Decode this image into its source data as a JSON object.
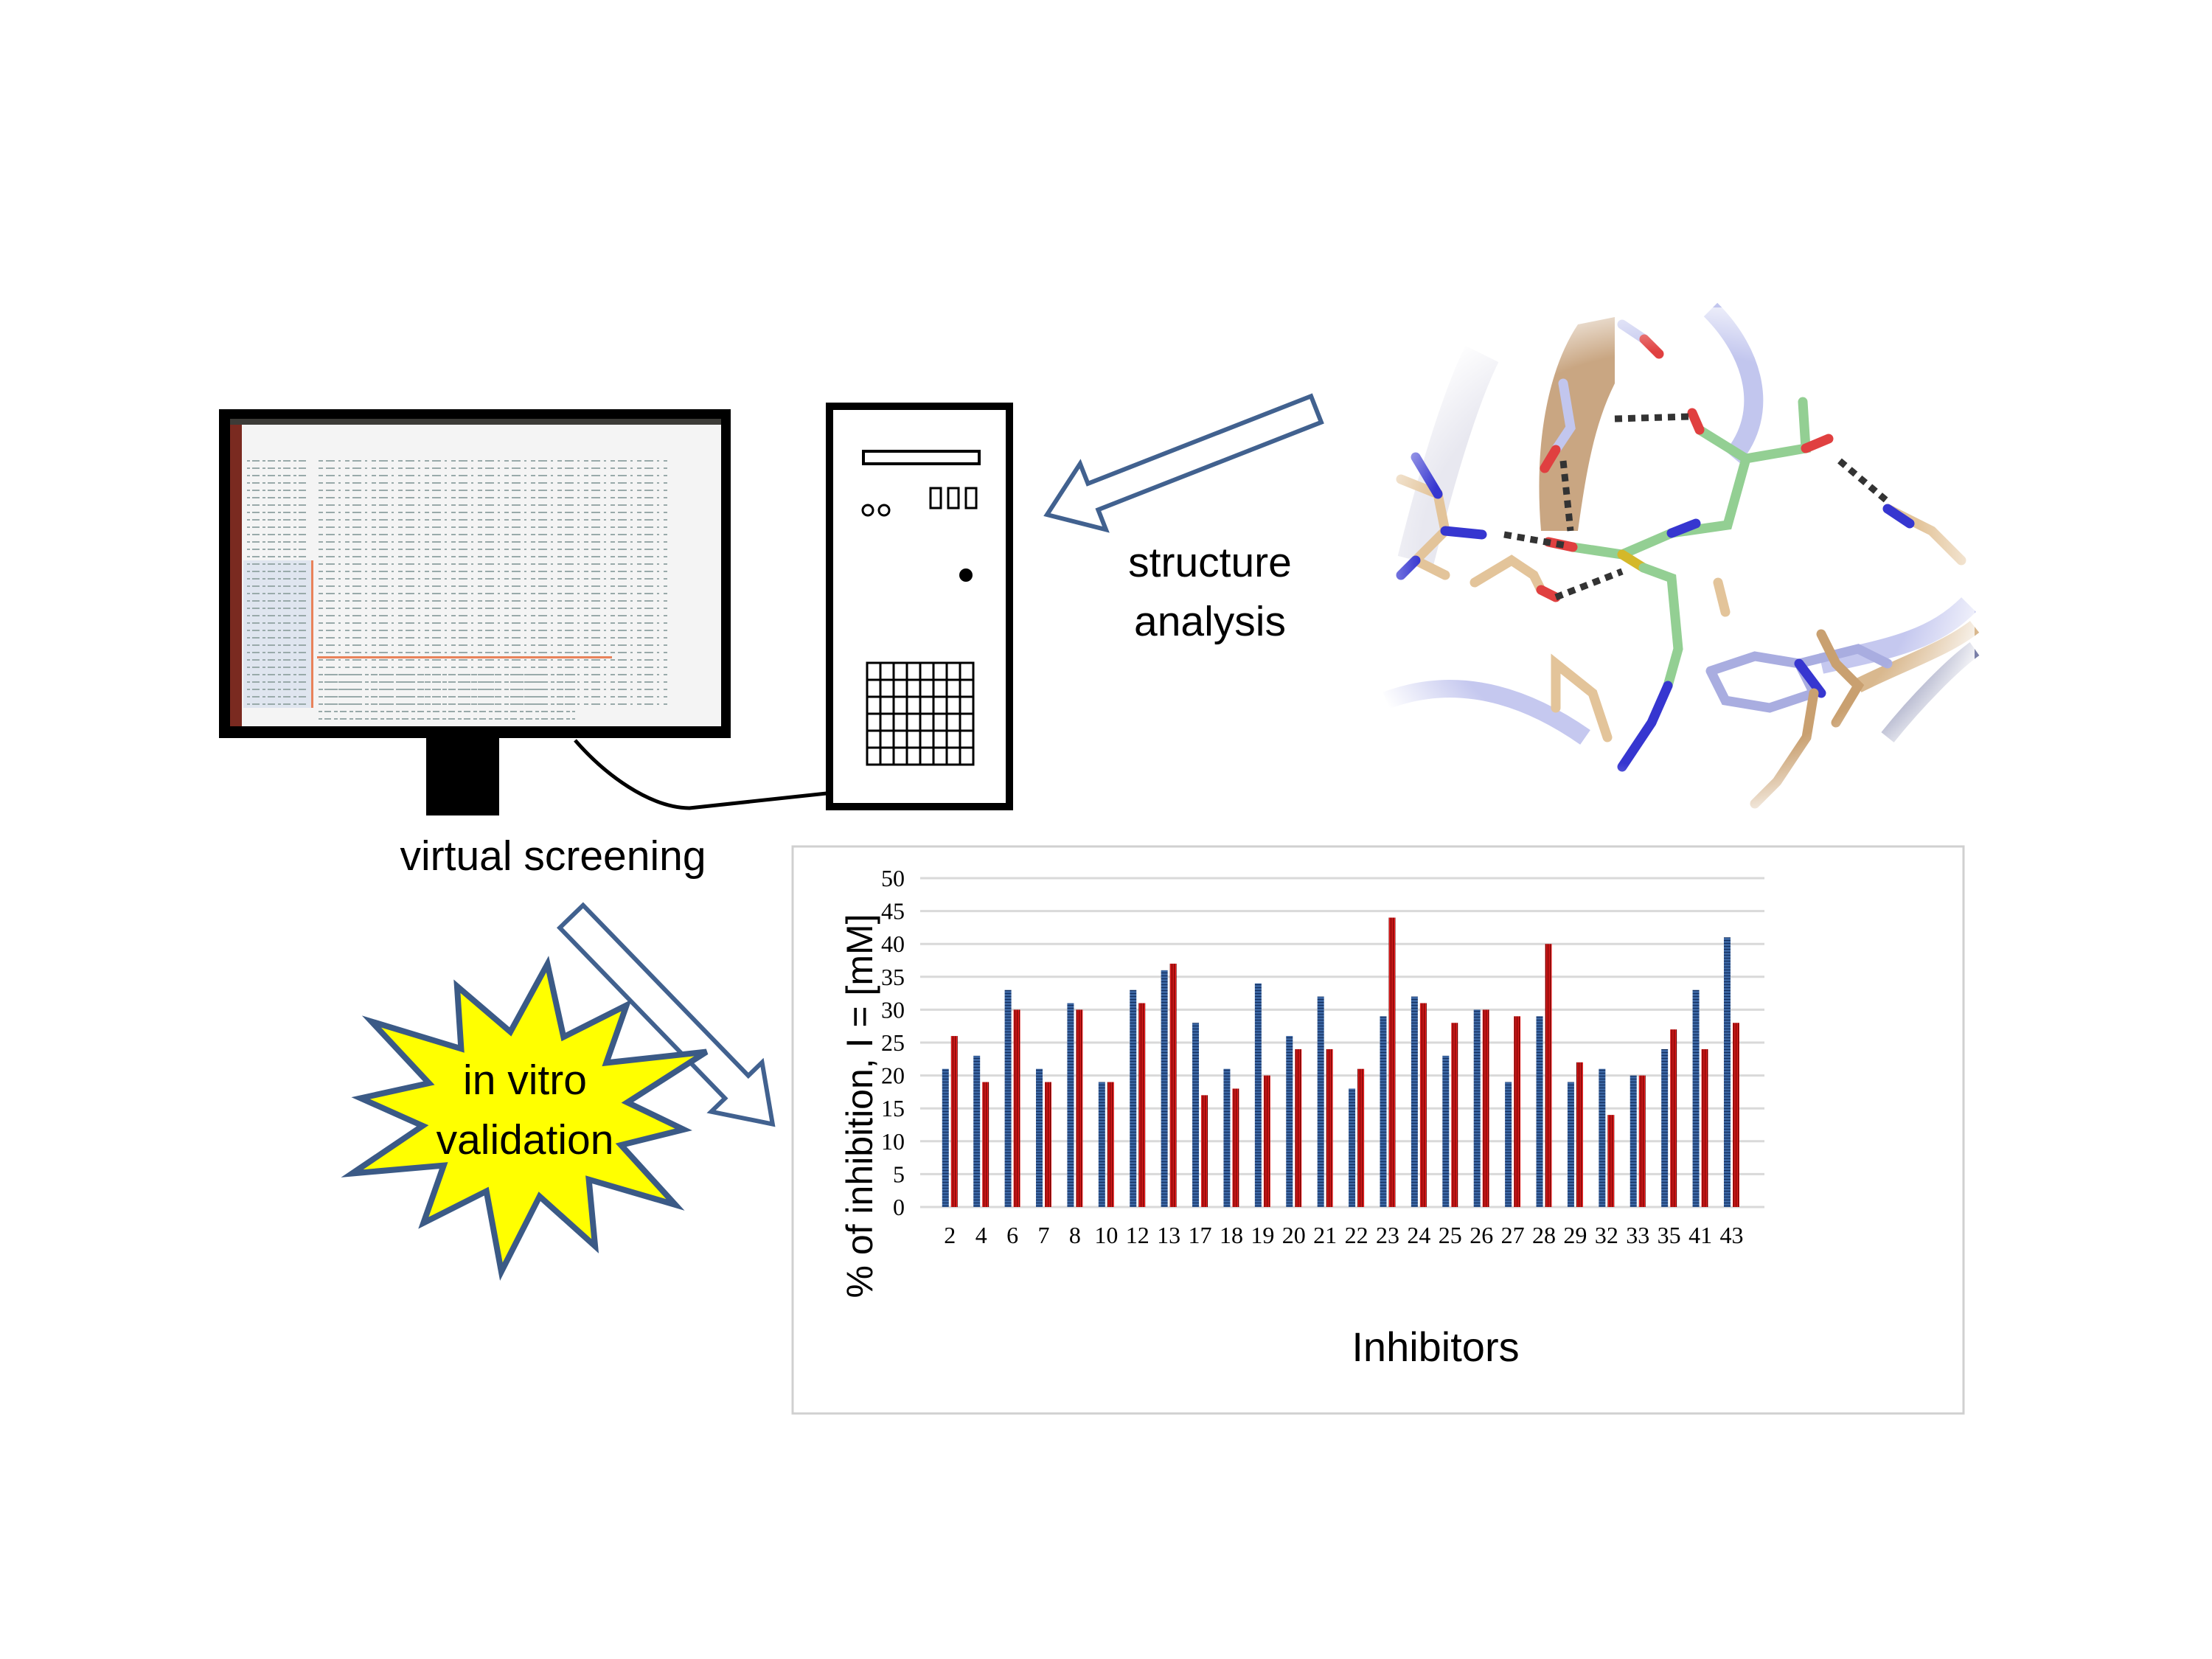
{
  "labels": {
    "virtual_screening": "virtual screening",
    "structure_analysis_line1": "structure",
    "structure_analysis_line2": "analysis",
    "in_vitro_line1": "in vitro",
    "in_vitro_line2": "validation"
  },
  "colors": {
    "arrow_outline": "#41618f",
    "star_fill": "#ffff00",
    "star_outline": "#3b5a86",
    "series_blue": "#2f5597",
    "series_red": "#c00000",
    "grid": "#d9d9d9"
  },
  "icons": [
    "monitor-icon",
    "computer-tower-icon",
    "outline-arrow-icon",
    "starburst-icon",
    "protein-ligand-structure-image"
  ],
  "chart_data": {
    "type": "bar",
    "xlabel": "Inhibitors",
    "ylabel": "% of inhibition, I = [mM]",
    "ylim": [
      0,
      50
    ],
    "yticks": [
      0,
      5,
      10,
      15,
      20,
      25,
      30,
      35,
      40,
      45,
      50
    ],
    "grid": true,
    "legend": "none",
    "categories": [
      "2",
      "4",
      "6",
      "7",
      "8",
      "10",
      "12",
      "13",
      "17",
      "18",
      "19",
      "20",
      "21",
      "22",
      "23",
      "24",
      "25",
      "26",
      "27",
      "28",
      "29",
      "32",
      "33",
      "35",
      "41",
      "43"
    ],
    "series": [
      {
        "color": "#2f5597",
        "pattern": "horizontal-stripes",
        "values": [
          21,
          23,
          33,
          21,
          31,
          19,
          33,
          36,
          28,
          21,
          34,
          26,
          32,
          18,
          29,
          32,
          23,
          30,
          19,
          29,
          19,
          21,
          20,
          24,
          33,
          41
        ]
      },
      {
        "color": "#c00000",
        "pattern": "vertical-stripes",
        "values": [
          26,
          19,
          30,
          19,
          30,
          19,
          31,
          37,
          17,
          18,
          20,
          24,
          24,
          21,
          44,
          31,
          28,
          30,
          29,
          40,
          22,
          14,
          20,
          27,
          24,
          28
        ]
      }
    ]
  }
}
